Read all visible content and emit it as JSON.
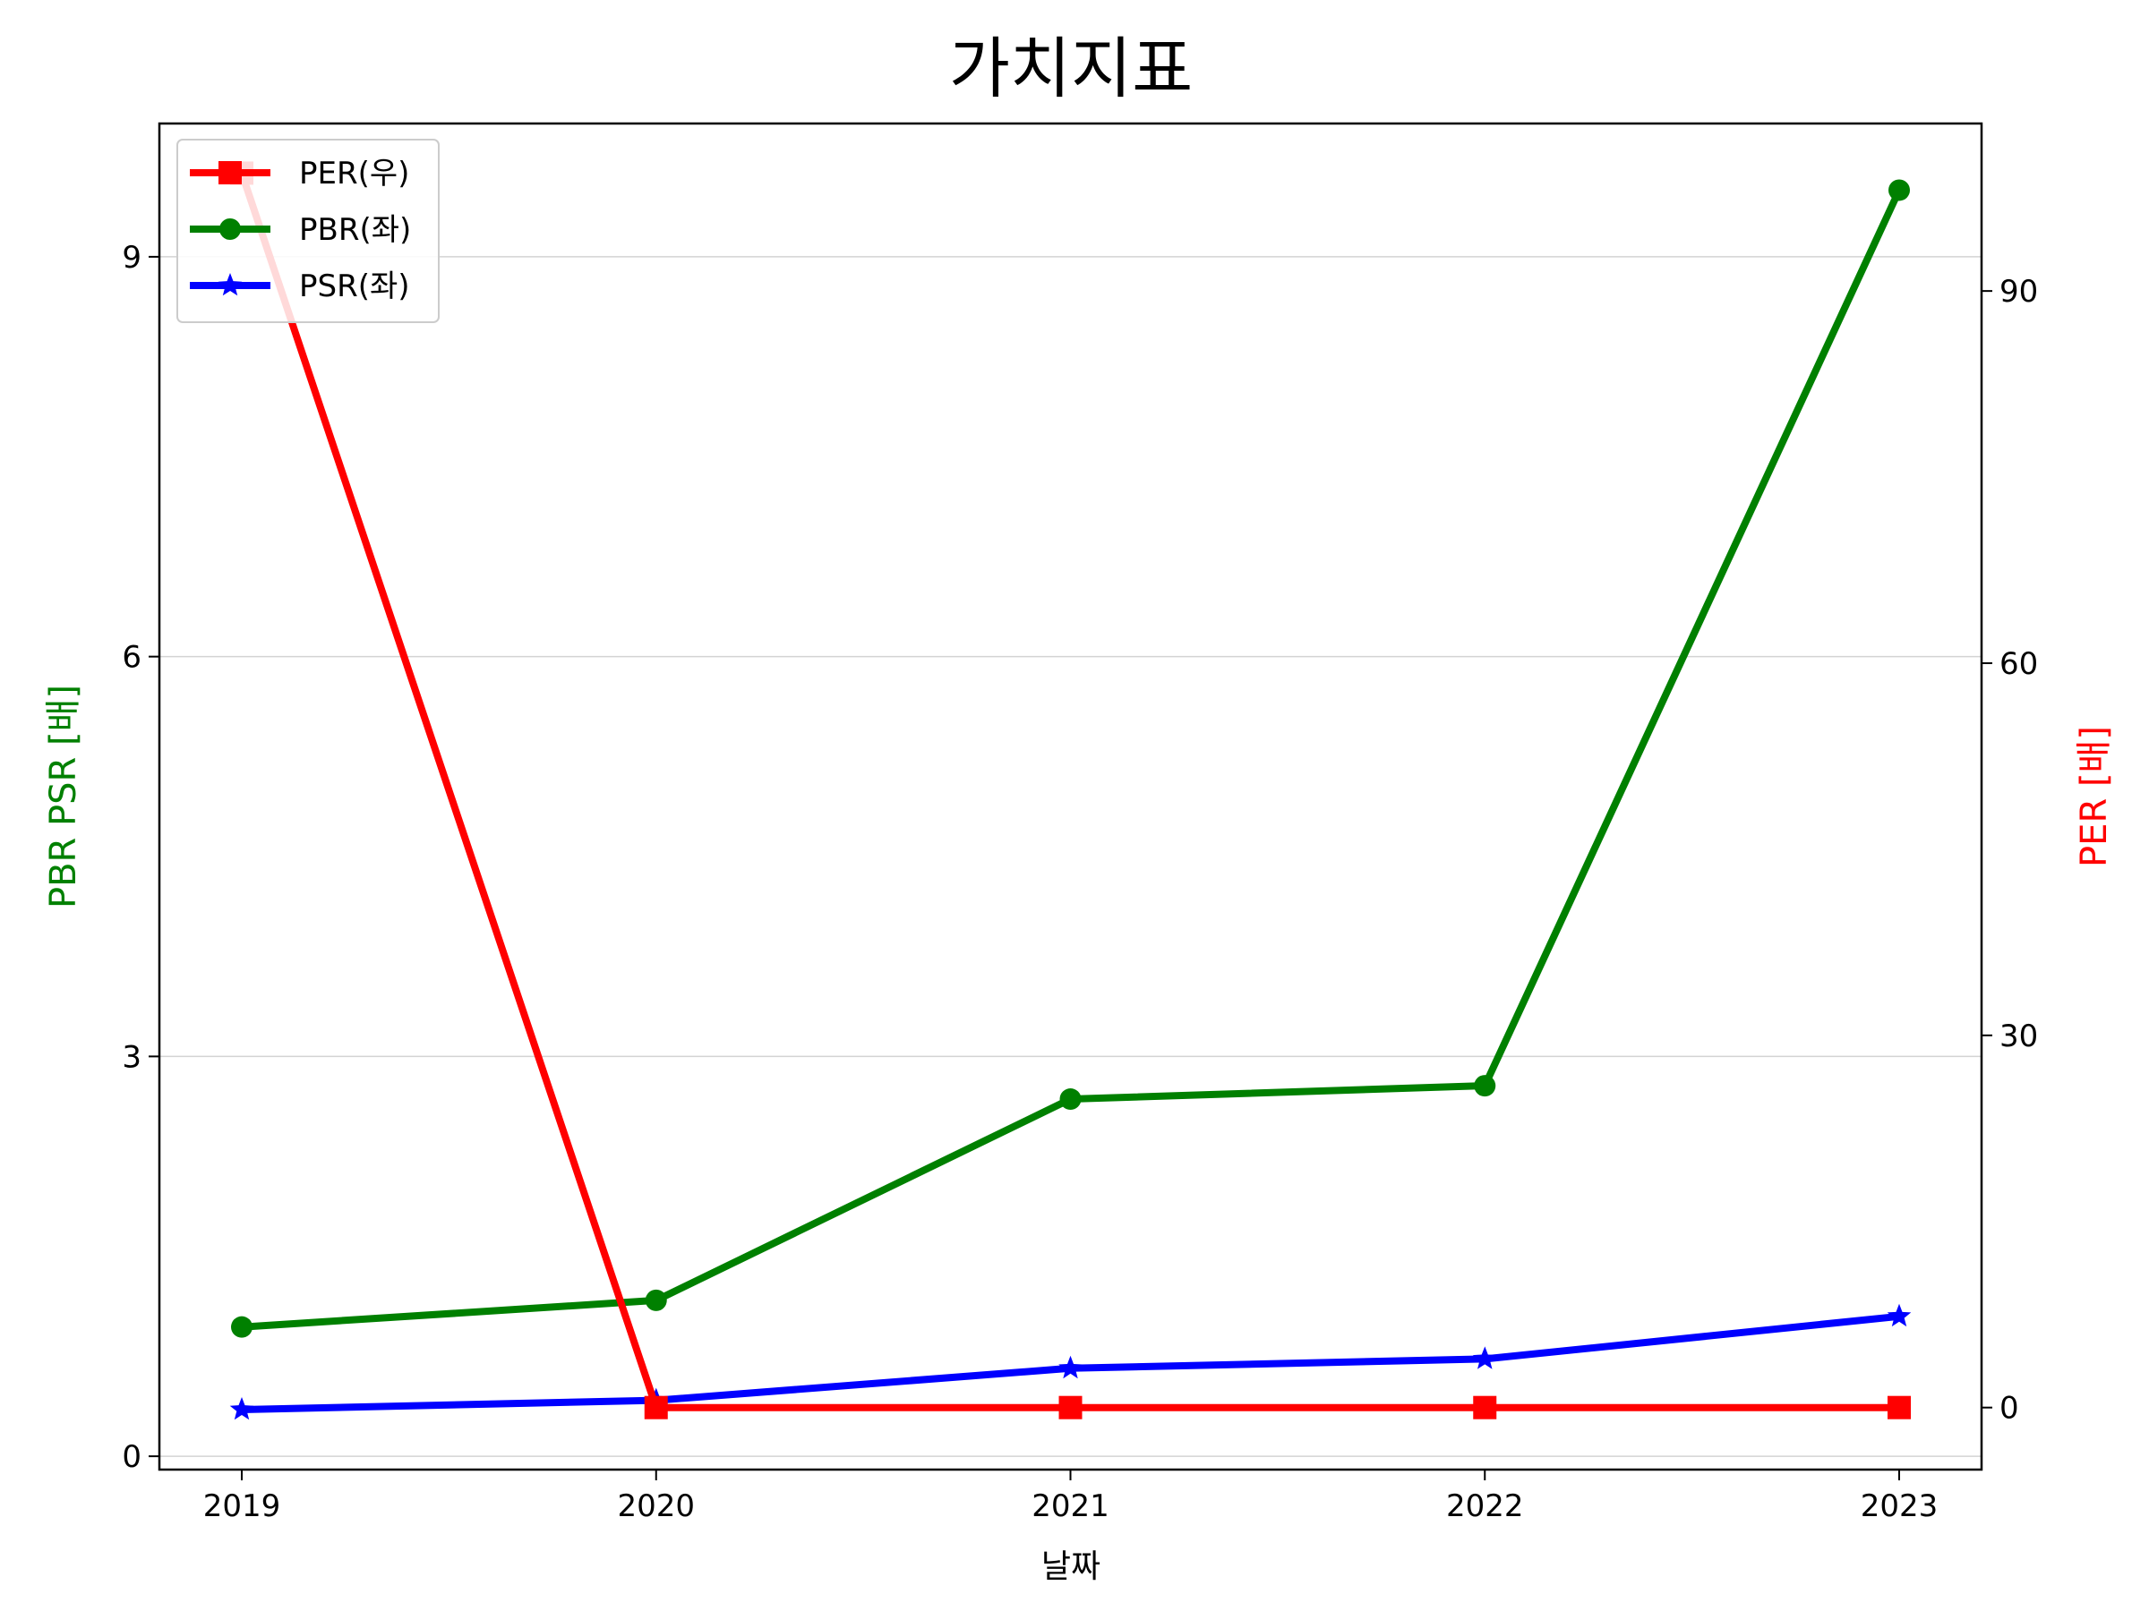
{
  "chart_data": {
    "type": "line",
    "title": "가치지표",
    "xlabel": "날짜",
    "ylabel_left": "PBR PSR [배]",
    "ylabel_right": "PER [배]",
    "x": [
      "2019",
      "2020",
      "2021",
      "2022",
      "2023"
    ],
    "ylim_left": [
      -0.1,
      10
    ],
    "yticks_left": [
      0,
      3,
      6,
      9
    ],
    "ylim_right": [
      -5,
      103.5
    ],
    "yticks_right": [
      0,
      30,
      60,
      90
    ],
    "grid": "horizontal (left axis)",
    "legend_position": "top-left",
    "series": [
      {
        "name": "PER(우)",
        "axis": "right",
        "color": "#ff0000",
        "marker": "square",
        "values": [
          99.5,
          0,
          0,
          0,
          0
        ]
      },
      {
        "name": "PBR(좌)",
        "axis": "left",
        "color": "#008000",
        "marker": "circle",
        "values": [
          0.97,
          1.17,
          2.68,
          2.78,
          9.5
        ]
      },
      {
        "name": "PSR(좌)",
        "axis": "left",
        "color": "#0000ff",
        "marker": "star",
        "values": [
          0.35,
          0.42,
          0.66,
          0.73,
          1.05
        ]
      }
    ]
  }
}
